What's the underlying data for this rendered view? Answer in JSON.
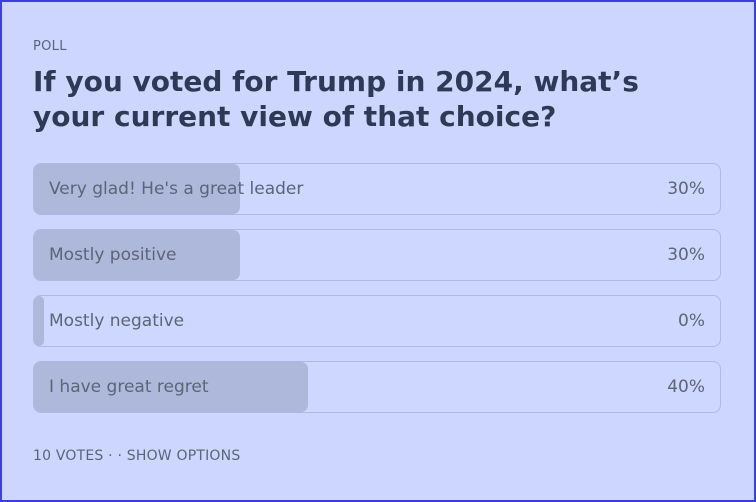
{
  "poll": {
    "eyebrow": "POLL",
    "title": "If you voted for Trump in 2024, what’s your current view of that choice?",
    "options": [
      {
        "label": "Very glad! He's a great leader",
        "percent_label": "30%",
        "fraction": 0.3
      },
      {
        "label": "Mostly positive",
        "percent_label": "30%",
        "fraction": 0.3
      },
      {
        "label": "Mostly negative",
        "percent_label": "0%",
        "fraction": 0.0
      },
      {
        "label": "I have great regret",
        "percent_label": "40%",
        "fraction": 0.4
      }
    ],
    "footer": {
      "votes": "10 VOTES",
      "separator": " · · ",
      "show_options": "SHOW OPTIONS"
    }
  },
  "colors": {
    "card_background": "#ccd6ff",
    "card_border": "#3b3ee0",
    "bar_fill": "#aeb8da",
    "title_text": "#2e3a55"
  }
}
